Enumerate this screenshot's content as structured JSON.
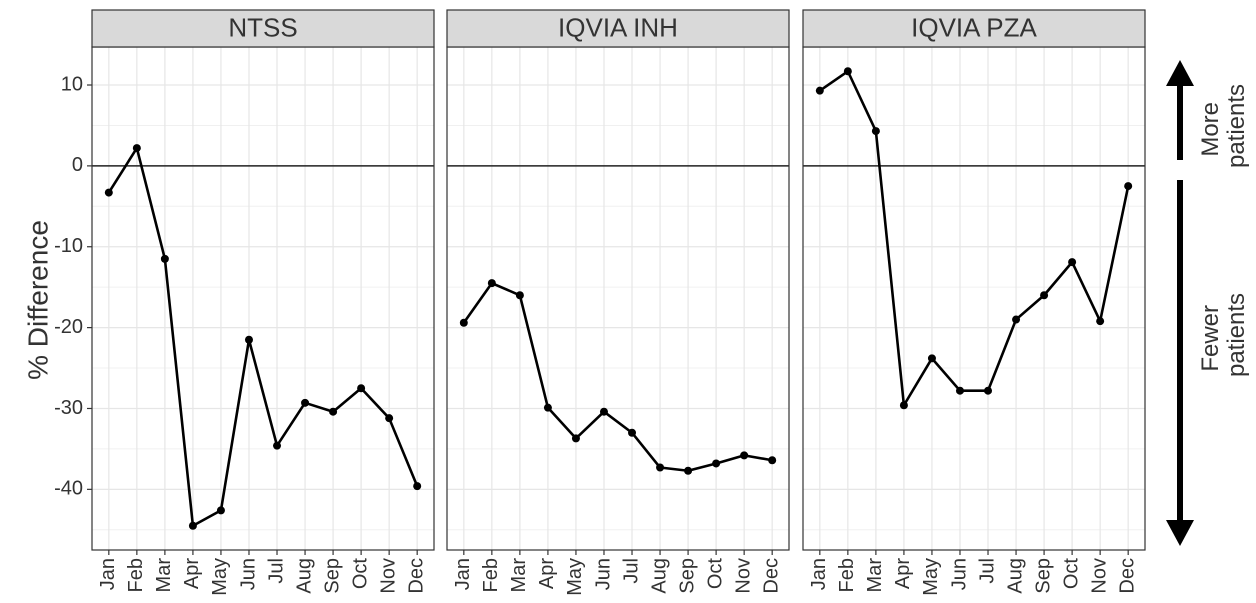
{
  "ylabel": "% Difference",
  "annotations": [
    [
      "More",
      "patients"
    ],
    [
      "Fewer",
      "patients"
    ]
  ],
  "chart_data": [
    {
      "type": "line",
      "title": "NTSS",
      "color": "#000000",
      "categories": [
        "Jan",
        "Feb",
        "Mar",
        "Apr",
        "May",
        "Jun",
        "Jul",
        "Aug",
        "Sep",
        "Oct",
        "Nov",
        "Dec"
      ],
      "values": [
        -3.3,
        2.2,
        -11.5,
        -44.5,
        -42.6,
        -21.5,
        -34.6,
        -29.3,
        -30.4,
        -27.5,
        -31.2,
        -39.6
      ],
      "ylim": [
        -47.5,
        14.7
      ],
      "yticks": [
        -40,
        -30,
        -20,
        -10,
        0,
        10
      ],
      "hline": 0,
      "grid": true
    },
    {
      "type": "line",
      "title": "IQVIA INH",
      "color": "#000000",
      "categories": [
        "Jan",
        "Feb",
        "Mar",
        "Apr",
        "May",
        "Jun",
        "Jul",
        "Aug",
        "Sep",
        "Oct",
        "Nov",
        "Dec"
      ],
      "values": [
        -19.4,
        -14.5,
        -16.0,
        -29.9,
        -33.7,
        -30.4,
        -33.0,
        -37.3,
        -37.7,
        -36.8,
        -35.8,
        -36.4
      ],
      "ylim": [
        -47.5,
        14.7
      ],
      "yticks": [
        -40,
        -30,
        -20,
        -10,
        0,
        10
      ],
      "hline": 0,
      "grid": true
    },
    {
      "type": "line",
      "title": "IQVIA PZA",
      "color": "#000000",
      "categories": [
        "Jan",
        "Feb",
        "Mar",
        "Apr",
        "May",
        "Jun",
        "Jul",
        "Aug",
        "Sep",
        "Oct",
        "Nov",
        "Dec"
      ],
      "values": [
        9.3,
        11.7,
        4.3,
        -29.6,
        -23.8,
        -27.8,
        -27.8,
        -19.0,
        -16.0,
        -11.9,
        -19.2,
        -2.5
      ],
      "ylim": [
        -47.5,
        14.7
      ],
      "yticks": [
        -40,
        -30,
        -20,
        -10,
        0,
        10
      ],
      "hline": 0,
      "grid": true
    }
  ]
}
